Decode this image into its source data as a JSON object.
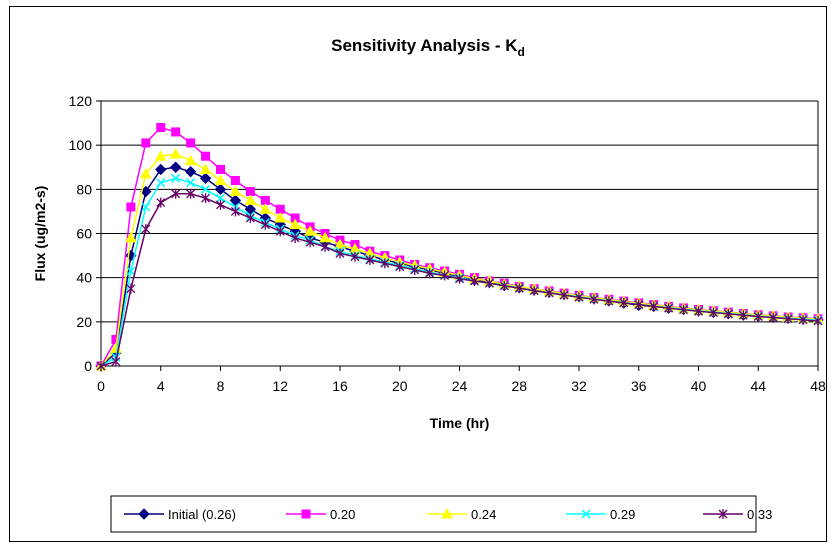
{
  "chart_data": {
    "type": "line",
    "title": "Sensitivity Analysis - K",
    "title_subscript": "d",
    "xlabel": "Time (hr)",
    "ylabel": "Flux (ug/m2-s)",
    "xlim": [
      0,
      48
    ],
    "ylim": [
      0,
      120
    ],
    "x_ticks": [
      0,
      4,
      8,
      12,
      16,
      20,
      24,
      28,
      32,
      36,
      40,
      44,
      48
    ],
    "y_ticks": [
      0,
      20,
      40,
      60,
      80,
      100,
      120
    ],
    "grid": "horizontal",
    "legend_position": "bottom",
    "x": [
      0,
      1,
      2,
      3,
      4,
      5,
      6,
      7,
      8,
      9,
      10,
      11,
      12,
      13,
      14,
      15,
      16,
      17,
      18,
      19,
      20,
      21,
      22,
      23,
      24,
      25,
      26,
      27,
      28,
      29,
      30,
      31,
      32,
      33,
      34,
      35,
      36,
      37,
      38,
      39,
      40,
      41,
      42,
      43,
      44,
      45,
      46,
      47,
      48
    ],
    "series": [
      {
        "name": "Initial (0.26)",
        "color": "#000080",
        "marker": "diamond",
        "values": [
          0,
          6,
          50,
          79,
          89,
          90,
          88,
          85,
          80,
          75,
          71,
          67,
          64,
          61,
          58,
          56,
          54,
          52,
          50,
          48,
          46.5,
          45,
          43.5,
          42,
          40.5,
          39,
          38,
          36.5,
          35.5,
          34.5,
          33.5,
          32.5,
          31.5,
          30.5,
          29.5,
          28.5,
          27.5,
          27,
          26.2,
          25.6,
          25,
          24.3,
          23.7,
          23.1,
          22.6,
          22.1,
          21.7,
          21.3,
          20.9
        ]
      },
      {
        "name": "0.20",
        "color": "#ff00ff",
        "marker": "square",
        "values": [
          0,
          12,
          72,
          101,
          108,
          106,
          101,
          95,
          89,
          84,
          79,
          75,
          71,
          67,
          63,
          60,
          57,
          55,
          52,
          50,
          48,
          46,
          44.5,
          43,
          41.5,
          40,
          38.5,
          37.5,
          36,
          35,
          34,
          33,
          32,
          31,
          30.2,
          29.4,
          28.6,
          27.8,
          27,
          26.3,
          25.6,
          25,
          24.4,
          23.8,
          23.2,
          22.7,
          22.2,
          21.8,
          21.4
        ]
      },
      {
        "name": "0.24",
        "color": "#ffff00",
        "marker": "triangle",
        "values": [
          0,
          8,
          58,
          87,
          95,
          96,
          93,
          89,
          84,
          79,
          75,
          71,
          67,
          64,
          61,
          58,
          55,
          53,
          51,
          49,
          47,
          45.5,
          44,
          42.5,
          41,
          39.5,
          38.5,
          37,
          36,
          35,
          33.8,
          32.8,
          31.8,
          30.9,
          30,
          29.2,
          28.4,
          27.6,
          26.9,
          26.1,
          25.5,
          24.9,
          24.3,
          23.7,
          23.1,
          22.6,
          22.1,
          21.6,
          21.2
        ]
      },
      {
        "name": "0.29",
        "color": "#00ffff",
        "marker": "x",
        "values": [
          0,
          4,
          43,
          72,
          83,
          85,
          83,
          80,
          76,
          72,
          68,
          65,
          62,
          59,
          57,
          54,
          52,
          50,
          48.5,
          47,
          45.5,
          44,
          42.5,
          41,
          40,
          38.5,
          37.5,
          36.5,
          35.3,
          34.2,
          33.2,
          32.2,
          31.3,
          30.4,
          29.5,
          28.7,
          27.9,
          27.1,
          26.4,
          25.7,
          25,
          24.4,
          23.8,
          23.2,
          22.6,
          22.1,
          21.6,
          21.2,
          20.8
        ]
      },
      {
        "name": "0.33",
        "color": "#660066",
        "marker": "asterisk",
        "values": [
          0,
          2,
          35,
          62,
          74,
          78,
          78,
          76,
          73,
          70,
          67,
          64,
          61,
          58,
          56,
          54,
          51,
          49.5,
          48,
          46.5,
          45,
          43.5,
          42,
          41,
          39.5,
          38.5,
          37.5,
          36.3,
          35.2,
          34.1,
          33.1,
          32.1,
          31.1,
          30.2,
          29.4,
          28.6,
          27.8,
          27,
          26.2,
          25.5,
          24.8,
          24.2,
          23.6,
          23,
          22.4,
          21.9,
          21.4,
          20.9,
          20.4
        ]
      }
    ]
  }
}
